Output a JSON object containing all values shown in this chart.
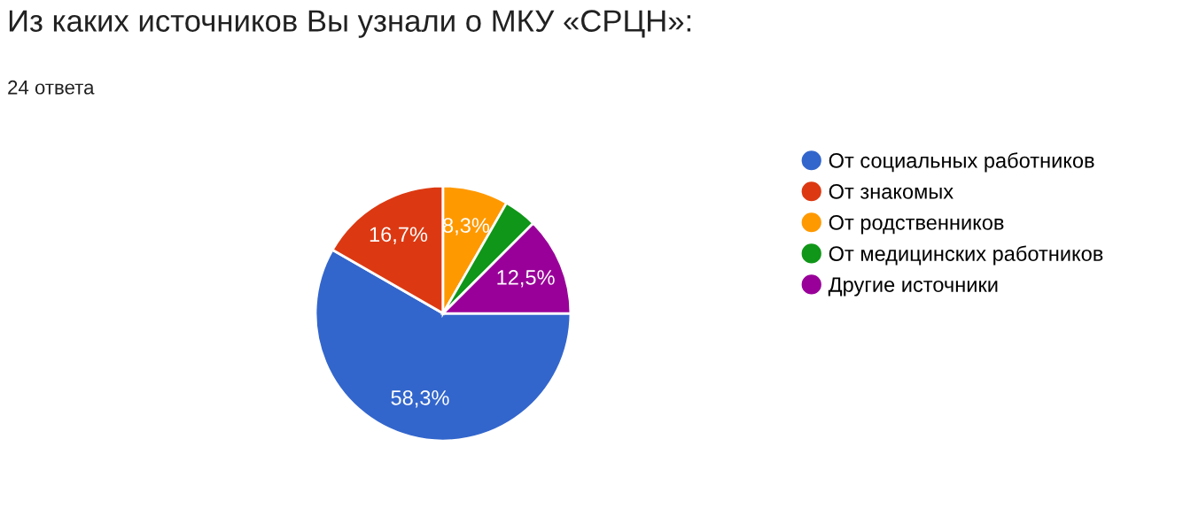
{
  "chart_data": {
    "type": "pie",
    "title": "Из каких источников Вы узнали о МКУ «СРЦН»:",
    "subtitle": "24 ответа",
    "categories": [
      "От социальных работников",
      "От знакомых",
      "От родственников",
      "От медицинских работников",
      "Другие источники"
    ],
    "values": [
      58.3,
      16.7,
      8.3,
      4.2,
      12.5
    ],
    "colors": [
      "#3366cc",
      "#dc3912",
      "#ff9900",
      "#109618",
      "#990099"
    ],
    "value_labels": [
      "58,3%",
      "16,7%",
      "8,3%",
      null,
      "12,5%"
    ],
    "legend": "right"
  }
}
